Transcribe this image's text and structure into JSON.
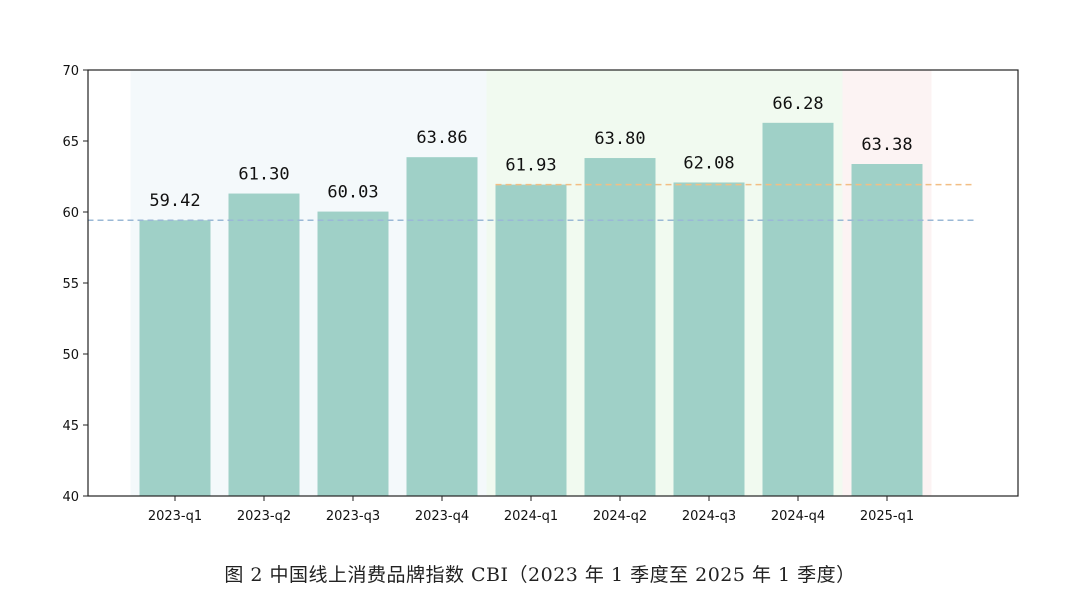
{
  "chart_data": {
    "type": "bar",
    "categories": [
      "2023-q1",
      "2023-q2",
      "2023-q3",
      "2023-q4",
      "2024-q1",
      "2024-q2",
      "2024-q3",
      "2024-q4",
      "2025-q1"
    ],
    "values": [
      59.42,
      61.3,
      60.03,
      63.86,
      61.93,
      63.8,
      62.08,
      66.28,
      63.38
    ],
    "value_labels": [
      "59.42",
      "61.30",
      "60.03",
      "63.86",
      "61.93",
      "63.80",
      "62.08",
      "66.28",
      "63.38"
    ],
    "ylim": [
      40,
      70
    ],
    "yticks": [
      "40",
      "45",
      "50",
      "55",
      "60",
      "65",
      "70"
    ],
    "bar_color": "#9fd0c7",
    "grid": false,
    "year_bands": [
      {
        "year": "2023",
        "from": "2023-q1",
        "to": "2023-q4",
        "color": "#f4f9fb"
      },
      {
        "year": "2024",
        "from": "2024-q1",
        "to": "2024-q4",
        "color": "#f1faf0"
      },
      {
        "year": "2025",
        "from": "2025-q1",
        "to": "2025-q1",
        "color": "#fcf3f3"
      }
    ],
    "reference_lines": [
      {
        "value": 59.42,
        "from": "2023-q1",
        "color": "#9ab8d6",
        "style": "dashed"
      },
      {
        "value": 61.93,
        "from": "2024-q1",
        "color": "#f2be84",
        "style": "dashed"
      }
    ]
  },
  "caption": "图 2  中国线上消费品牌指数 CBI（2023 年 1 季度至 2025 年 1 季度）"
}
